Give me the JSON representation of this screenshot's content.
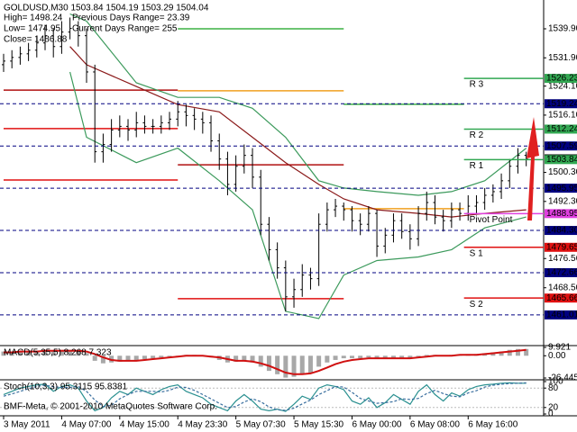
{
  "chart_data": [
    {
      "type": "candlestick",
      "title": "GOLDUSD,M30  1503.84 1504.19 1503.29 1504.04",
      "annotations": [
        "High= 1498.24",
        "Previous Days Range= 23.39",
        "Low= 1474.95",
        "Current Days Range= 255",
        "Close= 1486.88"
      ],
      "xlim": [
        -0.435,
        65.1
      ],
      "ylim": [
        1452.8,
        1547.84
      ],
      "yticks": [
        {
          "value": 1539.9,
          "label": "1539.90"
        },
        {
          "value": 1531.9,
          "label": "1531.90"
        },
        {
          "value": 1524.1,
          "label": "1524.10"
        },
        {
          "value": 1516.1,
          "label": "1516.10"
        },
        {
          "value": 1500.3,
          "label": "1500.30"
        },
        {
          "value": 1492.3,
          "label": "1492.30"
        },
        1476.56,
        {
          "value": 1468.5,
          "label": "1468.50"
        }
      ],
      "color": "#000000",
      "open": [
        1530,
        1531,
        1532,
        1533,
        1534,
        1536,
        1538,
        1535,
        1539,
        1540,
        1538,
        1528,
        1506,
        1508,
        1512,
        1513,
        1512,
        1514,
        1513,
        1513,
        1514,
        1515,
        1517,
        1516,
        1515,
        1514,
        1509,
        1504,
        1497,
        1502,
        1505,
        1499,
        1486,
        1479,
        1474,
        1466,
        1468,
        1472,
        1471,
        1486,
        1490,
        1491,
        1490,
        1487,
        1486,
        1489,
        1480,
        1483,
        1487,
        1484,
        1482,
        1489,
        1492,
        1488,
        1487,
        1490,
        1489,
        1491,
        1492,
        1494,
        1495,
        1498,
        1502,
        1505
      ],
      "high": [
        1533,
        1534,
        1535,
        1536,
        1538,
        1541,
        1540,
        1542,
        1543,
        1542,
        1540,
        1530,
        1511,
        1515,
        1516,
        1515,
        1517,
        1516,
        1515,
        1516,
        1517,
        1520,
        1519,
        1518,
        1517,
        1516,
        1511,
        1506,
        1505,
        1508,
        1507,
        1501,
        1488,
        1481,
        1476,
        1471,
        1475,
        1474,
        1489,
        1492,
        1493,
        1492,
        1491,
        1489,
        1491,
        1490,
        1485,
        1489,
        1489,
        1486,
        1491,
        1495,
        1494,
        1490,
        1492,
        1492,
        1494,
        1494,
        1496,
        1497,
        1500,
        1504,
        1507,
        1506
      ],
      "low": [
        1528,
        1529,
        1530,
        1531,
        1532,
        1534,
        1532,
        1533,
        1537,
        1535,
        1525,
        1503,
        1503,
        1506,
        1510,
        1509,
        1510,
        1511,
        1511,
        1511,
        1512,
        1513,
        1513,
        1512,
        1511,
        1506,
        1501,
        1494,
        1495,
        1500,
        1496,
        1483,
        1476,
        1471,
        1462,
        1463,
        1466,
        1468,
        1469,
        1484,
        1488,
        1487,
        1484,
        1483,
        1484,
        1477,
        1478,
        1481,
        1482,
        1479,
        1480,
        1487,
        1486,
        1484,
        1485,
        1487,
        1487,
        1489,
        1490,
        1492,
        1493,
        1496,
        1500,
        1502
      ],
      "close": [
        1531,
        1532,
        1533,
        1534,
        1536,
        1538,
        1535,
        1539,
        1540,
        1538,
        1528,
        1506,
        1508,
        1512,
        1513,
        1512,
        1514,
        1513,
        1513,
        1514,
        1515,
        1517,
        1516,
        1515,
        1514,
        1509,
        1504,
        1497,
        1502,
        1505,
        1499,
        1486,
        1479,
        1474,
        1466,
        1468,
        1472,
        1471,
        1486,
        1490,
        1491,
        1490,
        1487,
        1486,
        1489,
        1480,
        1483,
        1487,
        1484,
        1482,
        1489,
        1492,
        1488,
        1487,
        1490,
        1489,
        1491,
        1492,
        1494,
        1495,
        1498,
        1502,
        1505,
        1504
      ],
      "lines": [
        {
          "color": "#3c9a5c",
          "x": [
            8,
            10,
            16,
            21,
            26,
            30,
            34,
            38,
            41,
            45,
            50,
            54,
            58,
            63
          ],
          "values": [
            1544,
            1542,
            1525,
            1521,
            1521,
            1518,
            1510,
            1498,
            1496,
            1495,
            1494,
            1495,
            1498,
            1507
          ]
        },
        {
          "color": "#8b1a1a",
          "x": [
            8,
            10,
            16,
            21,
            26,
            30,
            34,
            38,
            41,
            45,
            50,
            54,
            58,
            63
          ],
          "values": [
            1535,
            1530,
            1524,
            1519,
            1517,
            1510,
            1503,
            1497,
            1493,
            1490,
            1489,
            1488,
            1489,
            1490
          ]
        },
        {
          "color": "#3c9a5c",
          "x": [
            8,
            10,
            16,
            21,
            26,
            30,
            34,
            38,
            41,
            45,
            50,
            54,
            58,
            63
          ],
          "values": [
            1528,
            1510,
            1503,
            1507,
            1498,
            1490,
            1462,
            1460,
            1472,
            1476,
            1477,
            1479,
            1485,
            1488
          ]
        }
      ],
      "previous_levels": [
        {
          "from": 0,
          "to": 21,
          "price": 1523.0,
          "color": "#b01010"
        },
        {
          "from": 0,
          "to": 21,
          "price": 1512.4,
          "color": "#e01010"
        },
        {
          "from": 0,
          "to": 21,
          "price": 1498.2,
          "color": "#e01010"
        },
        {
          "from": 21,
          "to": 41,
          "price": 1539.9,
          "color": "#3cb043"
        },
        {
          "from": 21,
          "to": 41,
          "price": 1522.8,
          "color": "#f0a020"
        },
        {
          "from": 21,
          "to": 41,
          "price": 1502.4,
          "color": "#b01010"
        },
        {
          "from": 21,
          "to": 41,
          "price": 1465.5,
          "color": "#e01010"
        },
        {
          "from": 41,
          "to": 55.5,
          "price": 1519.1,
          "color": "#3cb043"
        },
        {
          "from": 41,
          "to": 55.5,
          "price": 1490.3,
          "color": "#f0a020"
        }
      ],
      "day_start": 55.5,
      "levels": [
        {
          "price": 1526.23,
          "color": "#32a852",
          "style": "solid",
          "name": "R 3"
        },
        {
          "price": 1519.24,
          "color": "#000080",
          "style": "dashed"
        },
        {
          "price": 1512.24,
          "color": "#32a852",
          "style": "solid",
          "name": "R 2"
        },
        {
          "price": 1507.59,
          "color": "#000080",
          "style": "dashed"
        },
        {
          "price": 1504.04,
          "color": "#000000",
          "style": "label"
        },
        {
          "price": 1503.84,
          "color": "#32a852",
          "style": "solid",
          "name": "R 1"
        },
        {
          "price": 1495.95,
          "color": "#000080",
          "style": "dashed"
        },
        {
          "price": 1488.95,
          "color": "#e040e0",
          "style": "solid",
          "name": "Pivot Point"
        },
        {
          "price": 1484.3,
          "price_label": "1484.30",
          "color": "#000080",
          "style": "dashed"
        },
        {
          "price": 1479.65,
          "color": "#e01010",
          "style": "solid",
          "name": "S 1"
        },
        {
          "price": 1472.66,
          "color": "#000080",
          "style": "dashed"
        },
        {
          "price": 1465.66,
          "color": "#e01010",
          "style": "solid",
          "name": "S 2"
        },
        {
          "price": 1461.01,
          "color": "#000080",
          "style": "dashed"
        }
      ]
    },
    {
      "type": "macd",
      "title": "MACD(5,35,5) 8.268 7.323",
      "xlim": [
        -0.435,
        65.1
      ],
      "ylim": [
        -26.445,
        9.921
      ],
      "yticks": [
        9.921,
        {
          "value": 0,
          "label": "0.00"
        },
        -26.445
      ],
      "color": "#a8a8a8",
      "signal_color": "#d01010",
      "values": [
        5,
        5,
        6,
        6,
        6,
        7,
        6,
        7,
        7,
        6,
        3,
        -6,
        -9,
        -8,
        -7,
        -6,
        -5,
        -4,
        -3,
        -2,
        -1,
        0,
        1,
        1,
        0,
        -2,
        -5,
        -8,
        -7,
        -6,
        -8,
        -13,
        -18,
        -22,
        -26,
        -25,
        -22,
        -20,
        -13,
        -8,
        -5,
        -3,
        -3,
        -3,
        -2,
        -4,
        -4,
        -3,
        -3,
        -3,
        -1,
        1,
        1,
        0,
        1,
        1,
        2,
        2,
        3,
        4,
        5,
        7,
        8,
        8
      ],
      "signal_values": [
        4,
        4,
        5,
        5,
        5,
        6,
        6,
        6,
        6,
        6,
        5,
        2,
        -2,
        -5,
        -6,
        -6,
        -6,
        -5,
        -4,
        -3,
        -2,
        -1,
        0,
        0,
        0,
        -1,
        -2,
        -4,
        -6,
        -6,
        -7,
        -9,
        -12,
        -16,
        -20,
        -22,
        -22,
        -21,
        -18,
        -14,
        -10,
        -7,
        -5,
        -4,
        -3,
        -3,
        -3,
        -3,
        -3,
        -3,
        -2,
        -1,
        0,
        0,
        0,
        1,
        1,
        1,
        2,
        3,
        4,
        5,
        6,
        7
      ]
    },
    {
      "type": "stochastic",
      "title": "Stoch(10,3,3) 95.3115 95.8381",
      "annotation": "BMF-Meta, © 2001-2010 MetaQuotes Software Corp.",
      "xlim": [
        -0.435,
        65.1
      ],
      "ylim": [
        0,
        100
      ],
      "yticks": [
        100,
        80,
        20,
        0
      ],
      "xticks": [
        {
          "value": 0,
          "label": "3 May 2011"
        },
        {
          "value": 7,
          "label": "4 May 07:00"
        },
        {
          "value": 14,
          "label": "4 May 15:00"
        },
        {
          "value": 21,
          "label": "4 May 23:30"
        },
        {
          "value": 28,
          "label": "5 May 07:30"
        },
        {
          "value": 35,
          "label": "5 May 15:30"
        },
        {
          "value": 42,
          "label": "6 May 00:00"
        },
        {
          "value": 49,
          "label": "6 May 08:00"
        },
        {
          "value": 56,
          "label": "6 May 16:00"
        }
      ],
      "color": "#2a9090",
      "signal_color": "#3a6f9f",
      "values": [
        60,
        70,
        80,
        85,
        90,
        92,
        70,
        85,
        90,
        80,
        40,
        10,
        20,
        50,
        70,
        60,
        80,
        70,
        60,
        75,
        85,
        90,
        70,
        60,
        50,
        30,
        20,
        10,
        40,
        60,
        40,
        15,
        10,
        15,
        8,
        30,
        55,
        45,
        80,
        90,
        85,
        75,
        40,
        30,
        50,
        20,
        35,
        60,
        45,
        30,
        70,
        90,
        60,
        40,
        65,
        55,
        75,
        85,
        90,
        92,
        95,
        96,
        95,
        95
      ],
      "signal_values": [
        55,
        62,
        70,
        78,
        85,
        89,
        84,
        82,
        82,
        85,
        70,
        43,
        23,
        27,
        47,
        60,
        70,
        70,
        70,
        68,
        73,
        83,
        82,
        73,
        60,
        47,
        33,
        20,
        23,
        37,
        47,
        38,
        22,
        13,
        11,
        18,
        31,
        43,
        60,
        72,
        85,
        83,
        67,
        48,
        40,
        33,
        35,
        38,
        47,
        45,
        48,
        63,
        73,
        63,
        55,
        53,
        65,
        72,
        83,
        89,
        92,
        94,
        95,
        96
      ]
    }
  ]
}
